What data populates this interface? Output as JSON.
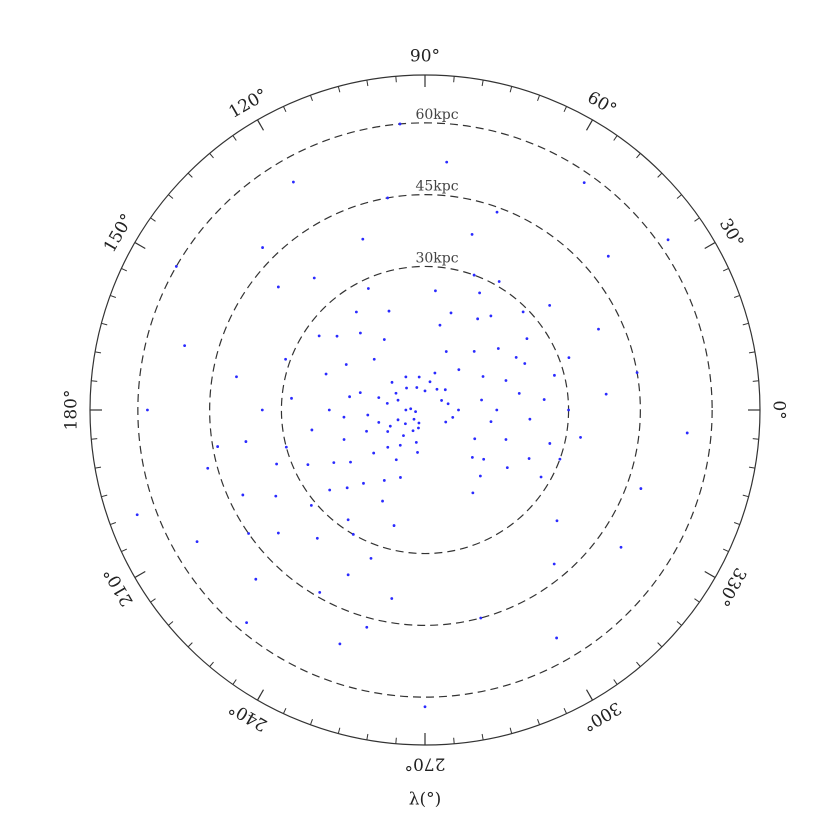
{
  "chart_data": {
    "type": "polar_scatter",
    "axis_label": "λ(°)",
    "rlim": [
      0,
      70
    ],
    "rings": [
      {
        "value": 30,
        "label": "30kpc"
      },
      {
        "value": 45,
        "label": "45kpc"
      },
      {
        "value": 60,
        "label": "60kpc"
      }
    ],
    "angle_ticks": [
      {
        "value": 0,
        "label": "0°"
      },
      {
        "value": 30,
        "label": "30°"
      },
      {
        "value": 60,
        "label": "60°"
      },
      {
        "value": 90,
        "label": "90°"
      },
      {
        "value": 120,
        "label": "120°"
      },
      {
        "value": 150,
        "label": "150°"
      },
      {
        "value": 180,
        "label": "180°"
      },
      {
        "value": 210,
        "label": "210°"
      },
      {
        "value": 240,
        "label": "240°"
      },
      {
        "value": 270,
        "label": "270°"
      },
      {
        "value": 300,
        "label": "300°"
      },
      {
        "value": 330,
        "label": "330°"
      }
    ],
    "minor_tick_step": 5,
    "color": "#2a2aff",
    "theta": [
      180,
      200,
      220,
      240,
      170,
      190,
      210,
      230,
      250,
      160,
      195,
      215,
      235,
      255,
      175,
      205,
      225,
      245,
      185,
      165,
      200,
      220,
      240,
      260,
      150,
      140,
      130,
      120,
      110,
      100,
      30,
      45,
      15,
      0,
      60,
      75,
      345,
      330,
      90,
      80,
      170,
      180,
      190,
      200,
      210,
      220,
      230,
      240,
      250,
      160,
      150,
      140,
      130,
      120,
      110,
      175,
      185,
      195,
      205,
      215,
      225,
      235,
      245,
      255,
      145,
      135,
      125,
      115,
      165,
      200,
      210,
      220,
      190,
      230,
      180,
      160,
      240,
      250,
      170,
      205,
      0,
      10,
      20,
      30,
      40,
      50,
      60,
      70,
      80,
      350,
      340,
      330,
      320,
      355,
      5,
      15,
      25,
      35,
      45,
      55,
      65,
      75,
      85,
      345,
      335,
      325,
      315,
      310,
      0,
      20,
      40,
      60,
      350,
      10,
      30,
      50,
      70,
      340,
      330,
      300,
      100,
      120,
      135,
      150,
      165,
      180,
      195,
      210,
      225,
      240,
      250,
      260,
      270,
      285,
      310,
      325,
      340,
      355,
      10,
      25,
      40,
      55,
      70,
      85,
      95,
      110,
      140,
      200,
      215,
      230,
      245,
      300,
      320,
      5,
      35,
      75,
      130,
      190,
      220,
      255
    ],
    "r": [
      4,
      6,
      3,
      5,
      8,
      2,
      9,
      7,
      4,
      6,
      10,
      5,
      9,
      7,
      3,
      8,
      11,
      3,
      12,
      10,
      13,
      14,
      12,
      9,
      7,
      9,
      6,
      8,
      5,
      7,
      4,
      6,
      5,
      7,
      5,
      8,
      6,
      5,
      4,
      6,
      16,
      20,
      24,
      18,
      22,
      26,
      20,
      17,
      15,
      22,
      19,
      24,
      21,
      17,
      22,
      28,
      17,
      30,
      27,
      19,
      23,
      28,
      21,
      25,
      27,
      15,
      25,
      28,
      14,
      33,
      36,
      31,
      38,
      35,
      34,
      31,
      30,
      33,
      40,
      42,
      15,
      12,
      18,
      14,
      20,
      16,
      22,
      13,
      18,
      14,
      18,
      12,
      16,
      22,
      25,
      28,
      23,
      26,
      29,
      24,
      27,
      21,
      25,
      27,
      24,
      21,
      14,
      18,
      30,
      32,
      34,
      31,
      33,
      20,
      22,
      11,
      30,
      30,
      28,
      20,
      45,
      55,
      48,
      60,
      52,
      58,
      47,
      55,
      50,
      44,
      52,
      40,
      62,
      45,
      42,
      50,
      48,
      55,
      45,
      40,
      50,
      58,
      44,
      52,
      60,
      38,
      40,
      64,
      45,
      58,
      38,
      55,
      36,
      38,
      62,
      38,
      36,
      44,
      40,
      47
    ]
  }
}
